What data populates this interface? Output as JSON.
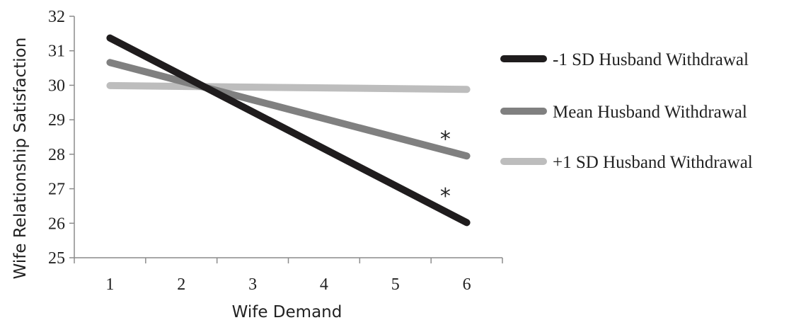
{
  "chart_data": {
    "type": "line",
    "xlabel": "Wife Demand",
    "ylabel": "Wife Relationship Satisfaction",
    "xlim": [
      0.5,
      6.5
    ],
    "ylim": [
      25,
      32
    ],
    "x_ticks": [
      1,
      2,
      3,
      4,
      5,
      6
    ],
    "y_ticks": [
      25,
      26,
      27,
      28,
      29,
      30,
      31,
      32
    ],
    "grid": false,
    "legend_position": "right",
    "series": [
      {
        "name": "-1 SD Husband Withdrawal",
        "color": "#1f1c1d",
        "x": [
          1,
          6
        ],
        "y": [
          31.37,
          26.02
        ]
      },
      {
        "name": "Mean Husband Withdrawal",
        "color": "#808080",
        "x": [
          1,
          6
        ],
        "y": [
          30.66,
          27.95
        ]
      },
      {
        "name": "+1 SD Husband Withdrawal",
        "color": "#bdbdbd",
        "x": [
          1,
          6
        ],
        "y": [
          29.99,
          29.88
        ]
      }
    ],
    "annotations": [
      {
        "text": "*",
        "x": 5.7,
        "y": 28.6
      },
      {
        "text": "*",
        "x": 5.7,
        "y": 26.95
      }
    ]
  }
}
